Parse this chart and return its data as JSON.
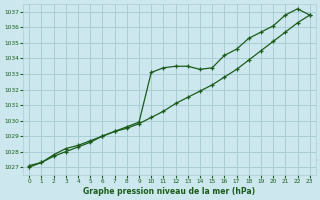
{
  "title": "Graphe pression niveau de la mer (hPa)",
  "bg_color": "#cce8ee",
  "grid_color": "#aacdd6",
  "line_color": "#1a5c1a",
  "marker_color": "#1a5c1a",
  "xlim": [
    -0.5,
    23.5
  ],
  "ylim": [
    1026.5,
    1037.5
  ],
  "yticks": [
    1027,
    1028,
    1029,
    1030,
    1031,
    1032,
    1033,
    1034,
    1035,
    1036,
    1037
  ],
  "xticks": [
    0,
    1,
    2,
    3,
    4,
    5,
    6,
    7,
    8,
    9,
    10,
    11,
    12,
    13,
    14,
    15,
    16,
    17,
    18,
    19,
    20,
    21,
    22,
    23
  ],
  "series1_x": [
    0,
    1,
    2,
    3,
    4,
    5,
    6,
    7,
    8,
    9,
    10,
    11,
    12,
    13,
    14,
    15,
    16,
    17,
    18,
    19,
    20,
    21,
    22,
    23
  ],
  "series1_y": [
    1027.1,
    1027.3,
    1027.8,
    1028.2,
    1028.4,
    1028.7,
    1029.0,
    1029.3,
    1029.6,
    1029.9,
    1033.1,
    1033.4,
    1033.5,
    1033.5,
    1033.3,
    1033.4,
    1034.2,
    1034.6,
    1035.3,
    1035.7,
    1036.1,
    1036.8,
    1037.2,
    1036.8
  ],
  "series2_x": [
    0,
    1,
    2,
    3,
    4,
    5,
    6,
    7,
    8,
    9,
    10,
    11,
    12,
    13,
    14,
    15,
    16,
    17,
    18,
    19,
    20,
    21,
    22,
    23
  ],
  "series2_y": [
    1027.0,
    1027.3,
    1027.7,
    1028.0,
    1028.3,
    1028.6,
    1029.0,
    1029.3,
    1029.5,
    1029.8,
    1030.2,
    1030.6,
    1031.1,
    1031.5,
    1031.9,
    1032.3,
    1032.8,
    1033.3,
    1033.9,
    1034.5,
    1035.1,
    1035.7,
    1036.3,
    1036.8
  ]
}
